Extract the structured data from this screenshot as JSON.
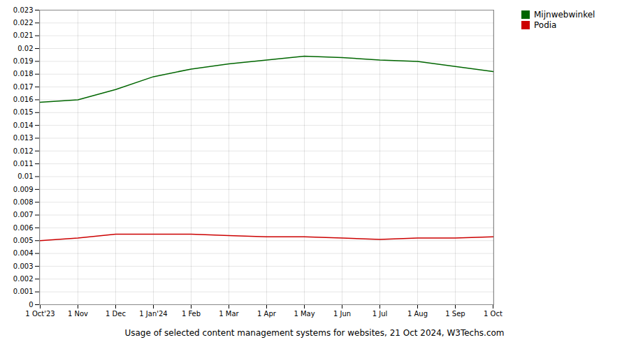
{
  "chart_data": {
    "type": "line",
    "title": "Usage of selected content management systems for websites, 21 Oct 2024, W3Techs.com",
    "categories": [
      "1 Oct'23",
      "1 Nov",
      "1 Dec",
      "1 Jan'24",
      "1 Feb",
      "1 Mar",
      "1 Apr",
      "1 May",
      "1 Jun",
      "1 Jul",
      "1 Aug",
      "1 Sep",
      "1 Oct"
    ],
    "series": [
      {
        "name": "Mijnwebwinkel",
        "color": "#006600",
        "values": [
          0.0158,
          0.016,
          0.0168,
          0.0178,
          0.0184,
          0.0188,
          0.0191,
          0.0194,
          0.0193,
          0.0191,
          0.019,
          0.0186,
          0.0182
        ]
      },
      {
        "name": "Podia",
        "color": "#cc0000",
        "values": [
          0.005,
          0.0052,
          0.0055,
          0.0055,
          0.0055,
          0.0054,
          0.0053,
          0.0053,
          0.0052,
          0.0051,
          0.0052,
          0.0052,
          0.0053
        ]
      }
    ],
    "ylim": [
      0,
      0.023
    ],
    "yticks": [
      0,
      0.001,
      0.002,
      0.003,
      0.004,
      0.005,
      0.006,
      0.007,
      0.008,
      0.009,
      0.01,
      0.011,
      0.012,
      0.013,
      0.014,
      0.015,
      0.016,
      0.017,
      0.018,
      0.019,
      0.02,
      0.021,
      0.022,
      0.023
    ],
    "grid": true,
    "legend": "right"
  }
}
